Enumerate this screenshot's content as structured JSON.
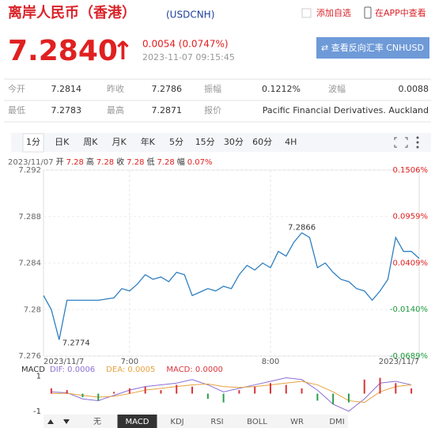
{
  "header": {
    "title": "离岸人民币（香港）",
    "code": "(USDCNH)",
    "add_watchlist": "添加自选",
    "open_app": "在APP中查看"
  },
  "quote": {
    "price": "7.2840",
    "arrow": "↑",
    "change": "0.0054 (0.0747%)",
    "time": "2023-11-07 09:15:45",
    "reverse_button": "⇄ 查看反向汇率 CNHUSD"
  },
  "stats": {
    "rows": [
      [
        [
          "今开",
          "7.2814"
        ],
        [
          "昨收",
          "7.2786"
        ],
        [
          "振幅",
          "0.1212%"
        ],
        [
          "波幅",
          "0.0088"
        ]
      ],
      [
        [
          "最低",
          "7.2783"
        ],
        [
          "最高",
          "7.2871"
        ],
        [
          "报价",
          "Pacific Financial Derivatives. Auckland"
        ]
      ]
    ]
  },
  "period_tabs": [
    "1分",
    "日K",
    "周K",
    "月K",
    "年K",
    "5分",
    "15分",
    "30分",
    "60分",
    "4H"
  ],
  "active_period": "1分",
  "info_line": {
    "date": "2023/11/07",
    "items": [
      [
        "开",
        "7.28"
      ],
      [
        "高",
        "7.28"
      ],
      [
        "收",
        "7.28"
      ],
      [
        "低",
        "7.28"
      ],
      [
        "幅",
        "0.07%"
      ]
    ]
  },
  "chart_data": [
    {
      "type": "line",
      "color": "#2f7fc0",
      "categories": [
        "2023/11/7",
        null,
        null,
        null,
        null,
        null,
        null,
        null,
        null,
        null,
        null,
        "7:00",
        null,
        null,
        null,
        null,
        null,
        null,
        null,
        null,
        null,
        null,
        null,
        null,
        null,
        null,
        null,
        null,
        null,
        "8:00",
        null,
        null,
        null,
        null,
        null,
        null,
        null,
        null,
        null,
        null,
        null,
        null,
        null,
        null,
        null,
        null,
        null,
        null,
        "2023/11/7"
      ],
      "values": [
        7.2812,
        7.28,
        7.2774,
        7.2808,
        7.2808,
        7.2808,
        7.2808,
        7.2808,
        7.2809,
        7.281,
        7.2818,
        7.2816,
        7.2822,
        7.283,
        7.2826,
        7.2828,
        7.2824,
        7.2832,
        7.283,
        7.2812,
        7.2815,
        7.2818,
        7.2816,
        7.282,
        7.2818,
        7.283,
        7.2838,
        7.2834,
        7.284,
        7.2836,
        7.285,
        7.2846,
        7.2858,
        7.2866,
        7.2862,
        7.2836,
        7.284,
        7.2832,
        7.2826,
        7.2824,
        7.2818,
        7.2816,
        7.2808,
        7.2816,
        7.2826,
        7.2862,
        7.285,
        7.285,
        7.2844
      ],
      "annotations": [
        "7.2774",
        "7.2866"
      ],
      "ylim": [
        7.276,
        7.292
      ],
      "yticks": [
        7.276,
        7.28,
        7.284,
        7.288,
        7.292
      ],
      "y2lim": [
        -0.0689,
        0.1506
      ],
      "y2ticks": [
        {
          "value": -0.0689,
          "label": "-0.0689%"
        },
        {
          "value": -0.014,
          "label": "-0.0140%"
        },
        {
          "value": 0.0409,
          "label": "0.0409%"
        },
        {
          "value": 0.0959,
          "label": "0.0959%"
        },
        {
          "value": 0.1506,
          "label": "0.1506%"
        }
      ],
      "grid": true
    },
    {
      "type": "macd",
      "title": "MACD",
      "up_color": "#d9343a",
      "down_color": "#2a9d4a",
      "series": [
        {
          "name": "DIF: 0.0006",
          "color": "#8b6fd6",
          "values": [
            0.1,
            0.05,
            -0.3,
            -0.4,
            -0.1,
            0.2,
            0.4,
            0.5,
            0.6,
            0.8,
            0.5,
            0.1,
            0.3,
            0.5,
            0.7,
            0.9,
            0.8,
            0.2,
            -0.6,
            -1.0,
            -0.3,
            0.6,
            0.7,
            0.5
          ]
        },
        {
          "name": "DEA: 0.0005",
          "color": "#e6a23c",
          "values": [
            0,
            0.02,
            -0.1,
            -0.2,
            -0.15,
            0,
            0.2,
            0.3,
            0.4,
            0.5,
            0.55,
            0.4,
            0.35,
            0.4,
            0.5,
            0.6,
            0.7,
            0.5,
            0.1,
            -0.4,
            -0.5,
            0.1,
            0.4,
            0.5
          ]
        },
        {
          "name": "MACD: 0.0000",
          "color": "#d9343a",
          "bars": true,
          "values": [
            0.3,
            0.2,
            -0.2,
            -0.4,
            0.1,
            0.3,
            0.4,
            0.2,
            0.5,
            0.4,
            -0.3,
            -0.5,
            0.2,
            0.4,
            0.6,
            0.5,
            0.3,
            -0.4,
            -0.6,
            -0.5,
            0.8,
            0.9,
            0.6,
            0.3
          ]
        }
      ],
      "ylim": [
        -1.1,
        1.6
      ],
      "yticks": [
        1,
        -1
      ]
    }
  ],
  "indicator_tabs": [
    "无",
    "MACD",
    "KDJ",
    "RSI",
    "BOLL",
    "WR",
    "DMI"
  ],
  "active_indicator": "MACD"
}
